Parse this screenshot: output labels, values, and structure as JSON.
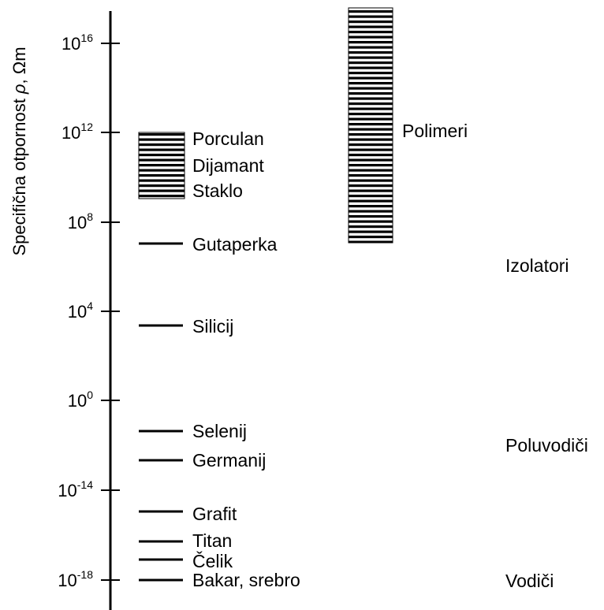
{
  "axis": {
    "label_prefix": "Specifična otpornost ",
    "label_symbol": "ρ",
    "label_suffix": ", Ωm",
    "ticks": [
      {
        "base": "10",
        "exp": "16"
      },
      {
        "base": "10",
        "exp": "12"
      },
      {
        "base": "10",
        "exp": "8"
      },
      {
        "base": "10",
        "exp": "4"
      },
      {
        "base": "10",
        "exp": "0"
      },
      {
        "base": "10",
        "exp": "-14"
      },
      {
        "base": "10",
        "exp": "-18"
      }
    ]
  },
  "range_bars": [
    {
      "name": "Porculan / Dijamant / Staklo",
      "labels": [
        "Porculan",
        "Dijamant",
        "Staklo"
      ]
    },
    {
      "name": "Polimeri",
      "labels": [
        "Polimeri"
      ]
    }
  ],
  "materials": [
    "Gutaperka",
    "Silicij",
    "Selenij",
    "Germanij",
    "Grafit",
    "Titan",
    "Čelik",
    "Bakar, srebro"
  ],
  "categories": [
    "Izolatori",
    "Poluvodiči",
    "Vodiči"
  ],
  "colors": {
    "line": "#000000",
    "background": "#ffffff"
  }
}
